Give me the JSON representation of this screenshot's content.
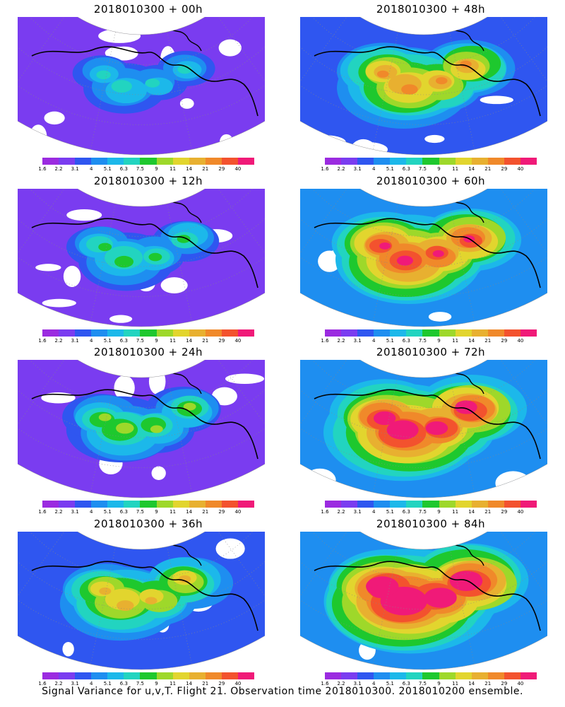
{
  "panels": [
    {
      "title": "2018010300 + 00h",
      "intensity": 0.15
    },
    {
      "title": "2018010300 + 12h",
      "intensity": 0.25
    },
    {
      "title": "2018010300 + 24h",
      "intensity": 0.35
    },
    {
      "title": "2018010300 + 36h",
      "intensity": 0.45
    },
    {
      "title": "2018010300 + 48h",
      "intensity": 0.55
    },
    {
      "title": "2018010300 + 60h",
      "intensity": 0.65
    },
    {
      "title": "2018010300 + 72h",
      "intensity": 0.75
    },
    {
      "title": "2018010300 + 84h",
      "intensity": 0.85
    }
  ],
  "colorbar": {
    "labels": [
      "1.6",
      "2.2",
      "3.1",
      "4",
      "5.1",
      "6.3",
      "7.5",
      "9",
      "11",
      "14",
      "21",
      "29",
      "40"
    ],
    "colors": [
      "#9b2be0",
      "#7a3cf0",
      "#2f56f0",
      "#1e8ef0",
      "#1cb8ea",
      "#22d4c0",
      "#1ec82e",
      "#9ed82a",
      "#e2d52e",
      "#e8b030",
      "#f0892a",
      "#f3522e",
      "#f01a78"
    ]
  },
  "footer": "Signal Variance for u,v,T. Flight 21. Observation time 2018010300. 2018010200 ensemble."
}
